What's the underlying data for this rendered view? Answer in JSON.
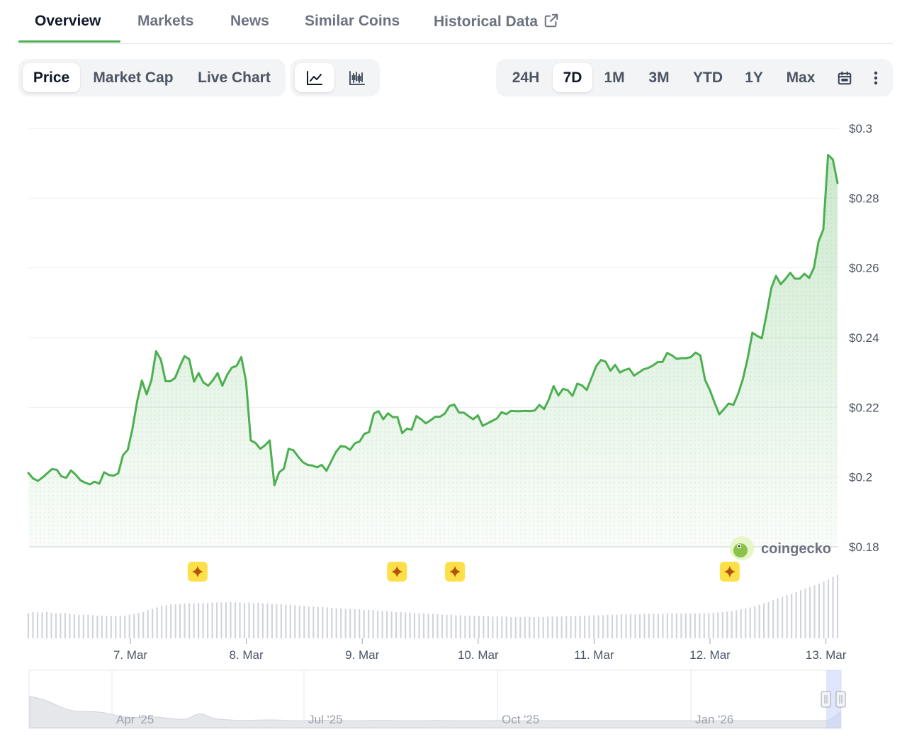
{
  "tabs": [
    {
      "label": "Overview",
      "active": true
    },
    {
      "label": "Markets"
    },
    {
      "label": "News"
    },
    {
      "label": "Similar Coins"
    },
    {
      "label": "Historical Data",
      "icon": "external-link-icon"
    }
  ],
  "chart_type_toggle": {
    "options": [
      "Price",
      "Market Cap",
      "Live Chart"
    ],
    "selected": "Price"
  },
  "view_toggle": {
    "options": [
      "line-chart-icon",
      "candlestick-chart-icon"
    ],
    "selected": "line-chart-icon"
  },
  "range_toggle": {
    "options": [
      "24H",
      "7D",
      "1M",
      "3M",
      "YTD",
      "1Y",
      "Max"
    ],
    "selected": "7D",
    "icons": [
      "calendar-icon",
      "more-vertical-icon"
    ]
  },
  "watermark": "coingecko",
  "colors": {
    "line": "#4caf50",
    "accent": "#4caf50",
    "event_marker": "#fde047",
    "volume_bar": "#d1d5db"
  },
  "chart_data": {
    "type": "area",
    "x_range": [
      "6. Mar",
      "13. Mar"
    ],
    "x_ticks": [
      "7. Mar",
      "8. Mar",
      "9. Mar",
      "10. Mar",
      "11. Mar",
      "12. Mar",
      "13. Mar"
    ],
    "x_tick_days": [
      7,
      8,
      9,
      10,
      11,
      12,
      13
    ],
    "y_ticks": [
      "$0.3",
      "$0.28",
      "$0.26",
      "$0.24",
      "$0.22",
      "$0.2",
      "$0.18"
    ],
    "y_tick_values": [
      0.3,
      0.28,
      0.26,
      0.24,
      0.22,
      0.2,
      0.18
    ],
    "ylim": [
      0.18,
      0.3
    ],
    "grid": true,
    "x_start_day": 6.12,
    "x_end_day": 13.1,
    "price": [
      0.2012,
      0.1996,
      0.1989,
      0.1999,
      0.2011,
      0.2023,
      0.2021,
      0.2002,
      0.1998,
      0.2019,
      0.2007,
      0.1991,
      0.1984,
      0.1979,
      0.1987,
      0.1981,
      0.2014,
      0.2006,
      0.2004,
      0.2011,
      0.2063,
      0.2078,
      0.2138,
      0.2218,
      0.2277,
      0.2237,
      0.2278,
      0.2361,
      0.2337,
      0.2275,
      0.2275,
      0.2284,
      0.2317,
      0.2347,
      0.2338,
      0.2274,
      0.2298,
      0.2271,
      0.2262,
      0.2278,
      0.2298,
      0.2262,
      0.2293,
      0.2314,
      0.2319,
      0.2344,
      0.2275,
      0.2105,
      0.2098,
      0.2081,
      0.2091,
      0.2105,
      0.1977,
      0.2014,
      0.2024,
      0.2081,
      0.2077,
      0.2059,
      0.2043,
      0.2035,
      0.2033,
      0.2028,
      0.2035,
      0.2018,
      0.2045,
      0.2072,
      0.2089,
      0.2087,
      0.2078,
      0.2097,
      0.2102,
      0.2124,
      0.2129,
      0.2182,
      0.2189,
      0.2166,
      0.2183,
      0.2172,
      0.2172,
      0.2126,
      0.2139,
      0.2136,
      0.2175,
      0.2166,
      0.2154,
      0.2163,
      0.2173,
      0.2173,
      0.2182,
      0.2204,
      0.2208,
      0.2185,
      0.2185,
      0.2175,
      0.2166,
      0.2177,
      0.2147,
      0.2154,
      0.2161,
      0.2168,
      0.2186,
      0.2181,
      0.219,
      0.2189,
      0.2189,
      0.219,
      0.2189,
      0.2191,
      0.2207,
      0.2195,
      0.2223,
      0.2261,
      0.2234,
      0.2253,
      0.2249,
      0.2233,
      0.2268,
      0.2263,
      0.225,
      0.2284,
      0.2318,
      0.2336,
      0.2331,
      0.2305,
      0.2322,
      0.23,
      0.2307,
      0.2311,
      0.2291,
      0.23,
      0.2309,
      0.2313,
      0.232,
      0.233,
      0.233,
      0.2356,
      0.2349,
      0.2339,
      0.2341,
      0.2341,
      0.2344,
      0.2357,
      0.2349,
      0.2279,
      0.225,
      0.2214,
      0.218,
      0.2195,
      0.2211,
      0.2207,
      0.2239,
      0.2281,
      0.234,
      0.2414,
      0.2405,
      0.2398,
      0.2467,
      0.2542,
      0.2577,
      0.2553,
      0.2568,
      0.2586,
      0.2569,
      0.2569,
      0.2583,
      0.2571,
      0.26,
      0.2676,
      0.271,
      0.2924,
      0.2911,
      0.2843
    ],
    "volume": [
      55,
      58,
      57,
      57,
      58,
      56,
      55,
      55,
      56,
      54,
      53,
      52,
      52,
      52,
      51,
      50,
      50,
      49,
      49,
      49,
      50,
      50,
      52,
      54,
      56,
      58,
      62,
      65,
      68,
      71,
      73,
      75,
      75,
      76,
      77,
      77,
      77,
      78,
      78,
      78,
      79,
      79,
      79,
      79,
      80,
      79,
      79,
      78,
      79,
      78,
      78,
      77,
      77,
      76,
      75,
      75,
      74,
      74,
      73,
      72,
      71,
      70,
      70,
      69,
      69,
      68,
      67,
      66,
      66,
      65,
      65,
      64,
      64,
      63,
      63,
      62,
      61,
      60,
      60,
      59,
      58,
      58,
      57,
      57,
      56,
      55,
      55,
      54,
      54,
      53,
      52,
      52,
      52,
      51,
      51,
      50,
      50,
      50,
      49,
      49,
      49,
      48,
      48,
      48,
      48,
      47,
      47,
      47,
      47,
      47,
      47,
      47,
      47,
      48,
      48,
      48,
      48,
      49,
      49,
      49,
      50,
      50,
      50,
      51,
      51,
      51,
      52,
      52,
      52,
      53,
      53,
      53,
      53,
      53,
      54,
      54,
      54,
      54,
      54,
      55,
      55,
      55,
      55,
      55,
      55,
      55,
      55,
      55,
      56,
      56,
      57,
      58,
      59,
      60,
      62,
      64,
      66,
      68,
      71,
      74,
      77,
      80,
      84,
      88,
      91,
      95,
      98,
      102,
      106,
      110,
      113,
      117,
      121,
      125,
      130,
      136,
      140
    ],
    "event_marker_days": [
      7.58,
      9.3,
      9.8,
      12.17
    ],
    "navigator": {
      "x_ticks": [
        "Apr '25",
        "Jul '25",
        "Oct '25",
        "Jan '26"
      ]
    }
  }
}
